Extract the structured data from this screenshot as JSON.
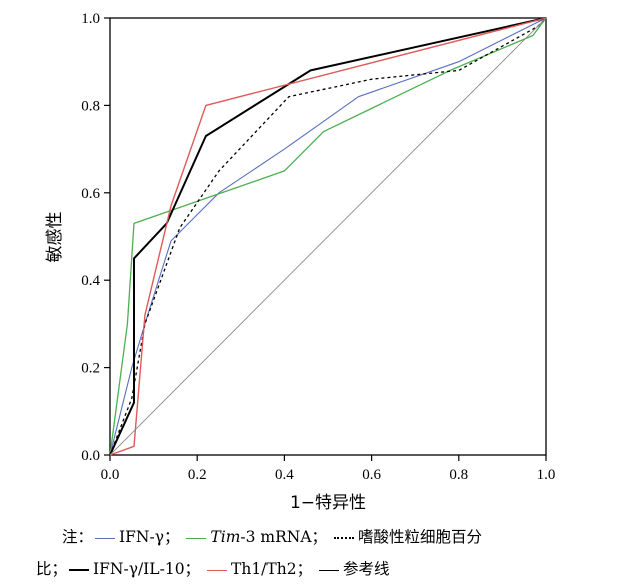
{
  "chart_data": {
    "type": "line",
    "xlabel": "1−特异性",
    "ylabel": "敏感性",
    "xlim": [
      0,
      1
    ],
    "ylim": [
      0,
      1
    ],
    "x_ticks": [
      "0.0",
      "0.2",
      "0.4",
      "0.6",
      "0.8",
      "1.0"
    ],
    "y_ticks": [
      "0.0",
      "0.2",
      "0.4",
      "0.6",
      "0.8",
      "1.0"
    ],
    "grid": false,
    "series": [
      {
        "key": "ifn",
        "name": "IFN-γ",
        "color": "#5a6fbf",
        "dash": "",
        "points": [
          [
            0,
            0
          ],
          [
            0.05,
            0.2
          ],
          [
            0.08,
            0.3
          ],
          [
            0.14,
            0.49
          ],
          [
            0.2,
            0.55
          ],
          [
            0.25,
            0.6
          ],
          [
            0.4,
            0.7
          ],
          [
            0.57,
            0.82
          ],
          [
            0.8,
            0.9
          ],
          [
            1,
            1
          ]
        ]
      },
      {
        "key": "tim3",
        "name": "Tim-3 mRNA",
        "color": "#4caf50",
        "dash": "",
        "points": [
          [
            0,
            0
          ],
          [
            0.04,
            0.3
          ],
          [
            0.055,
            0.53
          ],
          [
            0.4,
            0.65
          ],
          [
            0.49,
            0.74
          ],
          [
            0.78,
            0.88
          ],
          [
            0.97,
            0.96
          ],
          [
            1,
            1
          ]
        ]
      },
      {
        "key": "eos",
        "name": "嗜酸性粒细胞百分比",
        "color": "#000000",
        "dash": "3,3",
        "points": [
          [
            0,
            0
          ],
          [
            0.05,
            0.13
          ],
          [
            0.08,
            0.3
          ],
          [
            0.16,
            0.52
          ],
          [
            0.25,
            0.65
          ],
          [
            0.41,
            0.82
          ],
          [
            0.6,
            0.86
          ],
          [
            0.8,
            0.88
          ],
          [
            0.98,
            0.98
          ],
          [
            1,
            1
          ]
        ]
      },
      {
        "key": "ratio",
        "name": "IFN-γ/IL-10",
        "color": "#000000",
        "dash": "",
        "points": [
          [
            0,
            0
          ],
          [
            0.055,
            0.12
          ],
          [
            0.055,
            0.45
          ],
          [
            0.13,
            0.53
          ],
          [
            0.22,
            0.73
          ],
          [
            0.46,
            0.88
          ],
          [
            1,
            1
          ]
        ]
      },
      {
        "key": "th",
        "name": "Th1/Th2",
        "color": "#e05a5a",
        "dash": "",
        "points": [
          [
            0,
            0
          ],
          [
            0.055,
            0.02
          ],
          [
            0.08,
            0.32
          ],
          [
            0.14,
            0.57
          ],
          [
            0.22,
            0.8
          ],
          [
            1,
            1
          ]
        ]
      },
      {
        "key": "ref",
        "name": "参考线",
        "color": "#8a8a8a",
        "dash": "",
        "points": [
          [
            0,
            0
          ],
          [
            1,
            1
          ]
        ]
      }
    ]
  },
  "note": {
    "prefix": "注：",
    "ifn": "IFN-γ；",
    "tim_italic": "Tim",
    "tim_rest": "-3 mRNA；",
    "eos_line1": "嗜酸性粒细胞百分",
    "eos_line2": "比；",
    "ratio": "IFN-γ/IL-10；",
    "th": "Th1/Th2；",
    "ref": "参考线",
    "colors": {
      "ifn": "#5a6fbf",
      "tim3": "#4caf50",
      "eos": "#000000",
      "ratio": "#000000",
      "th": "#e05a5a",
      "ref": "#000000"
    }
  }
}
